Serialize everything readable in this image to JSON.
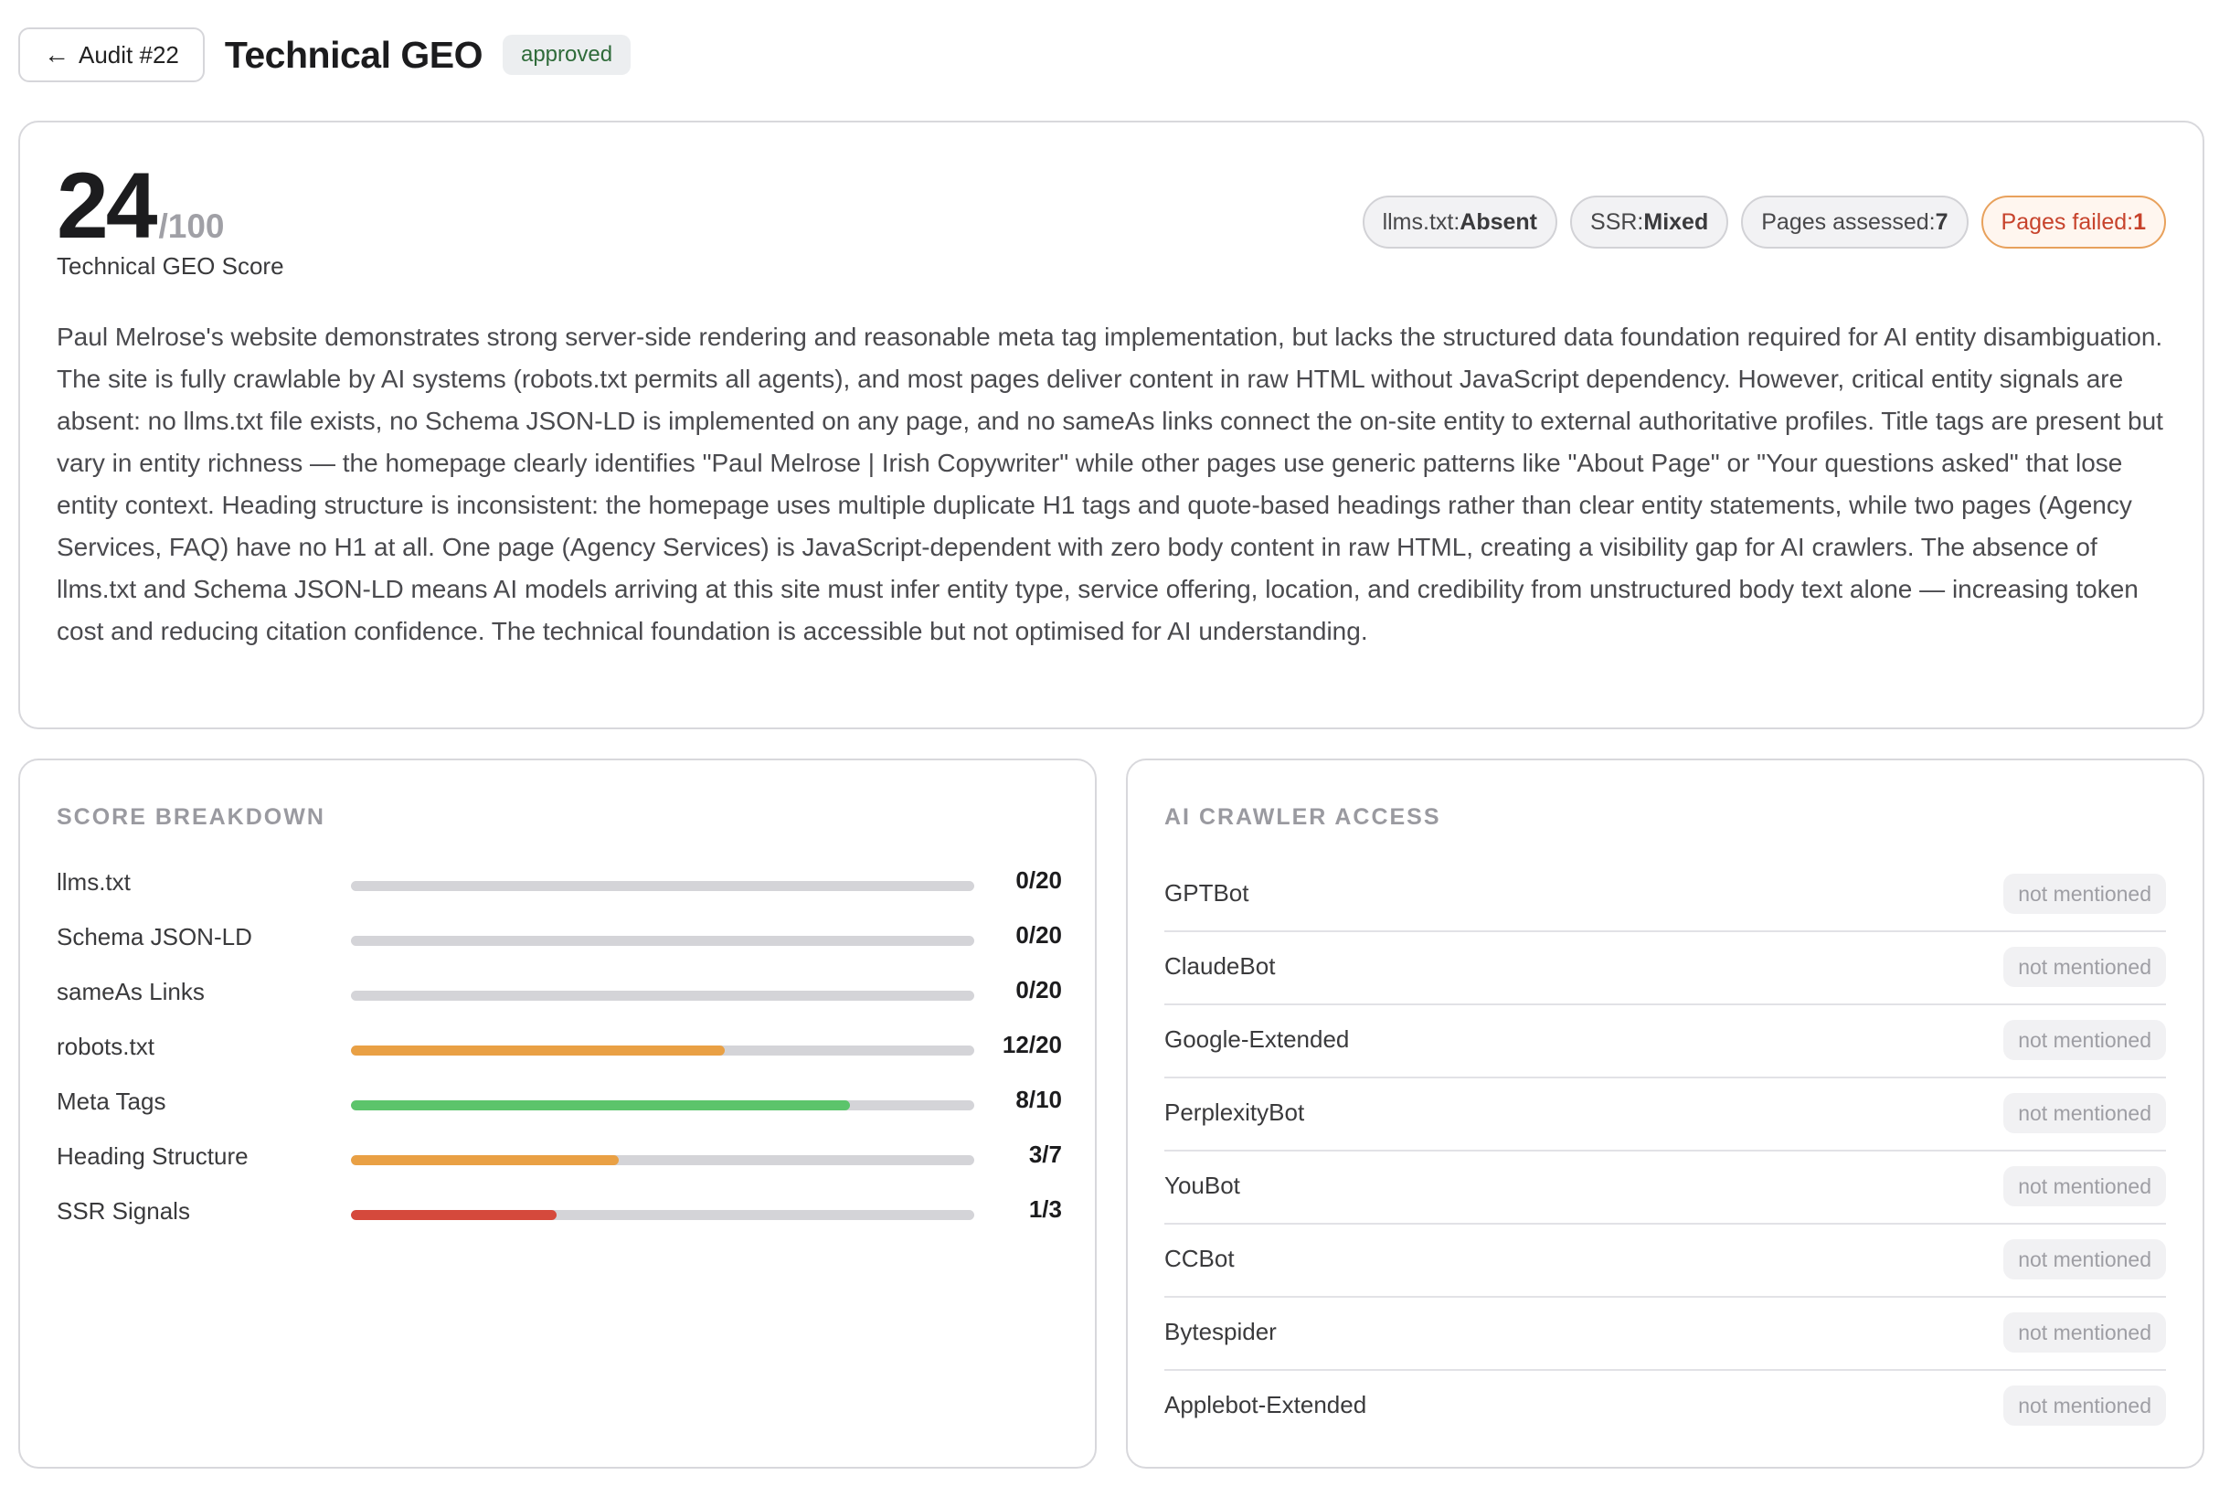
{
  "header": {
    "back_arrow": "←",
    "back_label": "Audit #22",
    "title": "Technical GEO",
    "status": "approved"
  },
  "score": {
    "value": "24",
    "max": "/100",
    "label": "Technical GEO Score"
  },
  "pills": [
    {
      "label": "llms.txt: ",
      "value": "Absent"
    },
    {
      "label": "SSR: ",
      "value": "Mixed"
    },
    {
      "label": "Pages assessed: ",
      "value": "7"
    },
    {
      "label": "Pages failed: ",
      "value": "1"
    }
  ],
  "summary": "Paul Melrose's website demonstrates strong server-side rendering and reasonable meta tag implementation, but lacks the structured data foundation required for AI entity disambiguation. The site is fully crawlable by AI systems (robots.txt permits all agents), and most pages deliver content in raw HTML without JavaScript dependency. However, critical entity signals are absent: no llms.txt file exists, no Schema JSON-LD is implemented on any page, and no sameAs links connect the on-site entity to external authoritative profiles. Title tags are present but vary in entity richness — the homepage clearly identifies \"Paul Melrose | Irish Copywriter\" while other pages use generic patterns like \"About Page\" or \"Your questions asked\" that lose entity context. Heading structure is inconsistent: the homepage uses multiple duplicate H1 tags and quote-based headings rather than clear entity statements, while two pages (Agency Services, FAQ) have no H1 at all. One page (Agency Services) is JavaScript-dependent with zero body content in raw HTML, creating a visibility gap for AI crawlers. The absence of llms.txt and Schema JSON-LD means AI models arriving at this site must infer entity type, service offering, location, and credibility from unstructured body text alone — increasing token cost and reducing citation confidence. The technical foundation is accessible but not optimised for AI understanding.",
  "breakdown": {
    "title": "SCORE BREAKDOWN",
    "rows": [
      {
        "label": "llms.txt",
        "value": "0/20",
        "fraction": 0,
        "color": "#d4d4d8"
      },
      {
        "label": "Schema JSON-LD",
        "value": "0/20",
        "fraction": 0,
        "color": "#d4d4d8"
      },
      {
        "label": "sameAs Links",
        "value": "0/20",
        "fraction": 0,
        "color": "#d4d4d8"
      },
      {
        "label": "robots.txt",
        "value": "12/20",
        "fraction": 0.6,
        "color": "#e9a044"
      },
      {
        "label": "Meta Tags",
        "value": "8/10",
        "fraction": 0.8,
        "color": "#5cc46b"
      },
      {
        "label": "Heading Structure",
        "value": "3/7",
        "fraction": 0.43,
        "color": "#e9a044"
      },
      {
        "label": "SSR Signals",
        "value": "1/3",
        "fraction": 0.33,
        "color": "#d5493c"
      }
    ]
  },
  "crawlers": {
    "title": "AI CRAWLER ACCESS",
    "rows": [
      {
        "name": "GPTBot",
        "status": "not mentioned"
      },
      {
        "name": "ClaudeBot",
        "status": "not mentioned"
      },
      {
        "name": "Google-Extended",
        "status": "not mentioned"
      },
      {
        "name": "PerplexityBot",
        "status": "not mentioned"
      },
      {
        "name": "YouBot",
        "status": "not mentioned"
      },
      {
        "name": "CCBot",
        "status": "not mentioned"
      },
      {
        "name": "Bytespider",
        "status": "not mentioned"
      },
      {
        "name": "Applebot-Extended",
        "status": "not mentioned"
      }
    ]
  }
}
